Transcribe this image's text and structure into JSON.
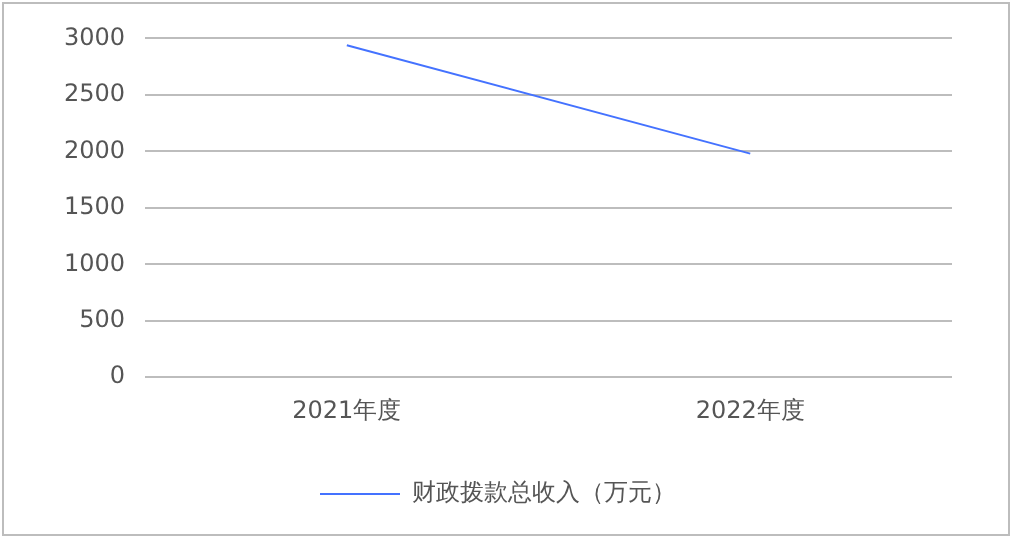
{
  "chart_data": {
    "type": "line",
    "categories": [
      "2021年度",
      "2022年度"
    ],
    "series": [
      {
        "name": "财政拨款总收入（万元）",
        "color": "#4472ff",
        "values": [
          2940,
          1980
        ]
      }
    ],
    "ylim": [
      0,
      3000
    ],
    "yticks": [
      0,
      500,
      1000,
      1500,
      2000,
      2500,
      3000
    ],
    "grid": "y",
    "legend": "bottom",
    "marker": "none"
  }
}
